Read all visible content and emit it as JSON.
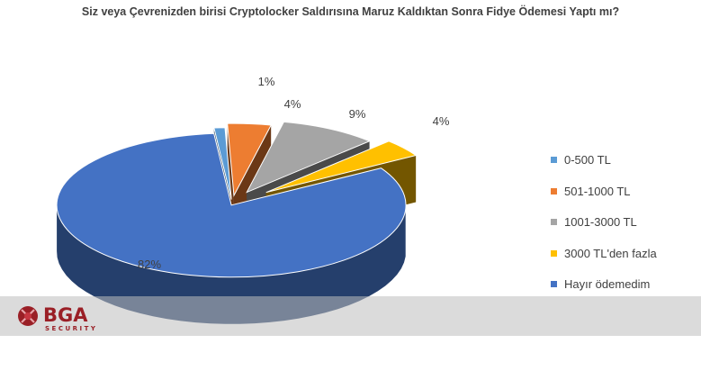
{
  "chart_data": {
    "type": "pie",
    "title": "Siz veya Çevrenizden birisi Cryptolocker Saldırısına Maruz Kaldıktan Sonra Fidye Ödemesi Yaptı mı?",
    "categories": [
      "0-500 TL",
      "501-1000 TL",
      "1001-3000 TL",
      "3000 TL'den fazla",
      "Hayır ödemedim"
    ],
    "values": [
      1,
      4,
      9,
      4,
      82
    ],
    "data_labels": [
      "1%",
      "4%",
      "9%",
      "4%",
      "82%"
    ],
    "colors": [
      "#5B9BD5",
      "#ED7D31",
      "#A5A5A5",
      "#FFC000",
      "#4472C4"
    ],
    "legend_position": "right",
    "style": "3d-exploded-pie"
  },
  "logo": {
    "brand": "BGA",
    "tagline": "SECURITY"
  }
}
